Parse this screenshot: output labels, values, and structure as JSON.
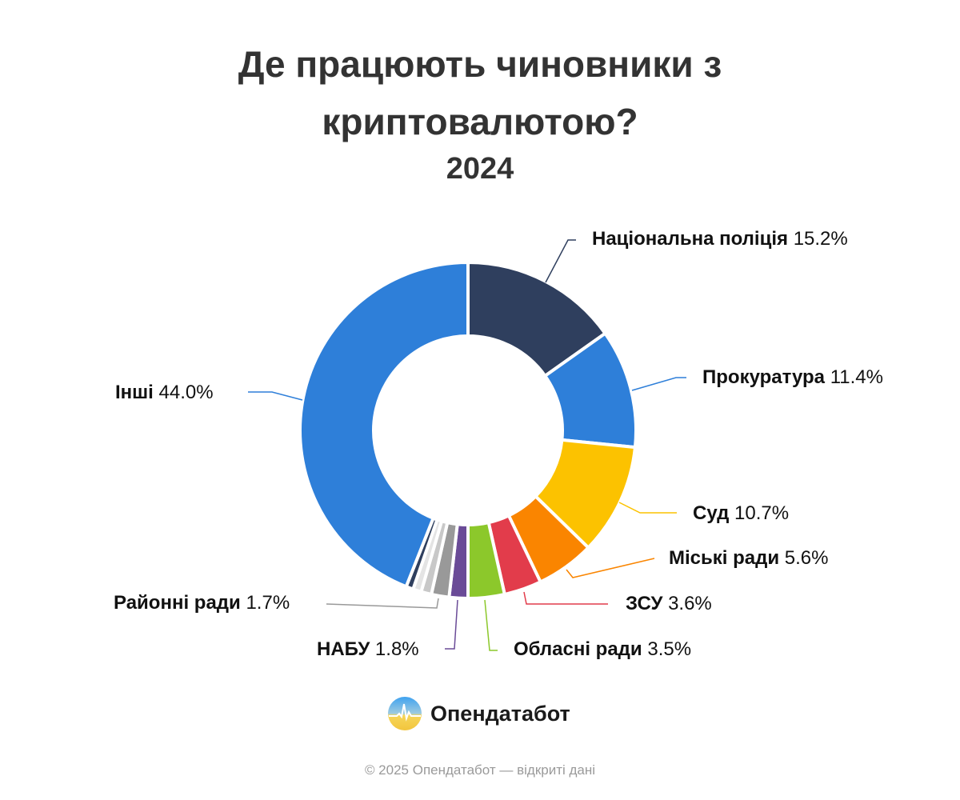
{
  "header": {
    "title_line1": "Де працюють чиновники з",
    "title_line2": "криптовалютою?",
    "subtitle": "2024"
  },
  "labels": [
    {
      "name": "Національна поліція",
      "value": "15.2%"
    },
    {
      "name": "Прокуратура",
      "value": "11.4%"
    },
    {
      "name": "Суд",
      "value": "10.7%"
    },
    {
      "name": "Міські ради",
      "value": "5.6%"
    },
    {
      "name": "ЗСУ",
      "value": "3.6%"
    },
    {
      "name": "Обласні ради",
      "value": "3.5%"
    },
    {
      "name": "НАБУ",
      "value": "1.8%"
    },
    {
      "name": "Районні ради",
      "value": "1.7%"
    },
    {
      "name": "Інші",
      "value": "44.0%"
    }
  ],
  "brand": {
    "name": "Опендатабот"
  },
  "footer": {
    "text": "© 2025 Опендатабот — відкриті дані"
  },
  "chart_data": {
    "type": "pie",
    "variant": "donut",
    "title": "Де працюють чиновники з криптовалютою?",
    "subtitle": "2024",
    "categories": [
      "Національна поліція",
      "Прокуратура",
      "Суд",
      "Міські ради",
      "ЗСУ",
      "Обласні ради",
      "НАБУ",
      "Районні ради",
      "(unlabeled)",
      "(unlabeled)",
      "(unlabeled)",
      "Інші"
    ],
    "values": [
      15.2,
      11.4,
      10.7,
      5.6,
      3.6,
      3.5,
      1.8,
      1.7,
      1.0,
      0.8,
      0.7,
      44.0
    ],
    "colors": [
      "#2f3f5e",
      "#2e7fd9",
      "#fcc200",
      "#fa8500",
      "#e23c4b",
      "#8cc82b",
      "#6a4b97",
      "#999999",
      "#c8c8c8",
      "#e4e4e4",
      "#2f3f5e",
      "#2e7fd9"
    ],
    "unit": "%",
    "legend": "none (leader-line labels)"
  }
}
